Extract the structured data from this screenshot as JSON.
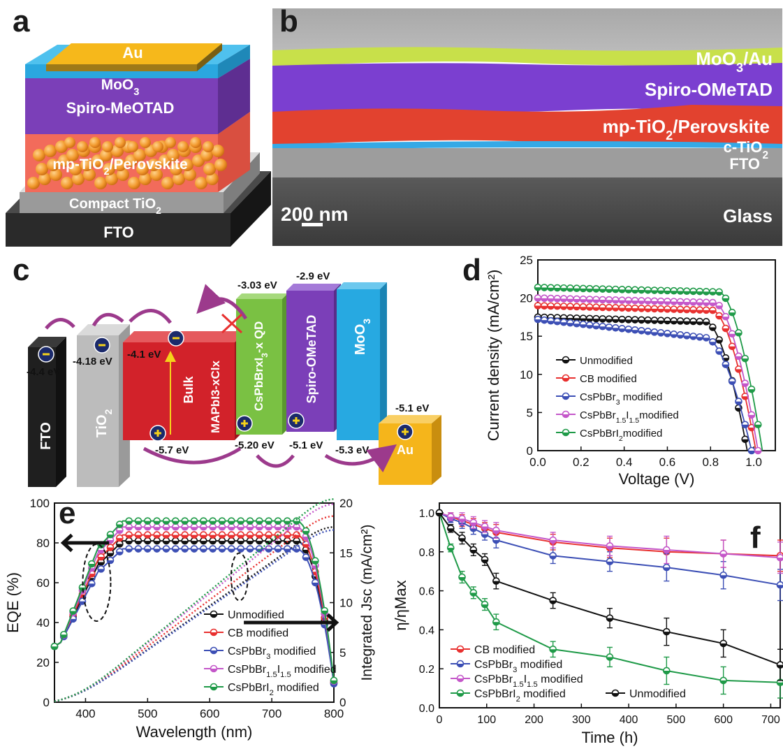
{
  "panels": {
    "a": "a",
    "b": "b",
    "c": "c",
    "d": "d",
    "e": "e",
    "f": "f"
  },
  "panel_a": {
    "layers": [
      "Au",
      "MoO3",
      "Spiro-MeOTAD",
      "mp-TiO2/Perovskite",
      "Compact TiO2",
      "FTO"
    ]
  },
  "panel_b": {
    "labels": [
      "MoO3/Au",
      "Spiro-OMeTAD",
      "mp-TiO2/Perovskite",
      "c-TiO2",
      "FTO",
      "Glass"
    ],
    "scalebar": "200 nm",
    "colors": {
      "moo3_au": "#c8e04a",
      "spiro": "#7b3fd0",
      "perovskite": "#e2422f",
      "ctio2": "#35a9e6"
    }
  },
  "panel_c": {
    "blocks": [
      {
        "name": "FTO",
        "top": "-4.4 eV",
        "color": "#1f1f1f"
      },
      {
        "name": "TiO2",
        "top": "-4.18 eV",
        "color": "#c2c2c2"
      },
      {
        "name": "Bulk MAPbI3-xClx",
        "top": "-4.1 eV",
        "bottom": "-5.7 eV",
        "color": "#d2222a"
      },
      {
        "name": "CsPbBrxI3-x QD",
        "top": "-3.03 eV",
        "bottom": "-5.20 eV",
        "color": "#7ac143"
      },
      {
        "name": "Spiro-OMeTAD",
        "top": "-2.9 eV",
        "bottom": "-5.1 eV",
        "color": "#7b3fb8"
      },
      {
        "name": "MoO3",
        "bottom": "-5.3 eV",
        "color": "#27a9e1"
      },
      {
        "name": "Au",
        "top": "-5.1 eV",
        "color": "#f5b51b"
      }
    ]
  },
  "chart_data": [
    {
      "panel": "d",
      "type": "line",
      "xlabel": "Voltage (V)",
      "ylabel": "Current density (mA/cm²)",
      "xlim": [
        0.0,
        1.1
      ],
      "ylim": [
        0,
        25
      ],
      "xticks": [
        "0.0",
        "0.2",
        "0.4",
        "0.6",
        "0.8",
        "1.0"
      ],
      "yticks": [
        "0",
        "5",
        "10",
        "15",
        "20",
        "25"
      ],
      "legend": "lower-left",
      "series": [
        {
          "name": "Unmodified",
          "color": "#111111",
          "jsc": 17.5,
          "voc": 0.97,
          "knee": 0.78
        },
        {
          "name": "CB modified",
          "color": "#e8302f",
          "jsc": 19.0,
          "voc": 1.01,
          "knee": 0.81
        },
        {
          "name": "CsPbBr3 modified",
          "color": "#3c4fb5",
          "jsc": 17.2,
          "voc": 0.99,
          "knee": 0.78
        },
        {
          "name": "CsPbBr1.5I1.5modified",
          "color": "#c457c9",
          "jsc": 20.0,
          "voc": 1.02,
          "knee": 0.82
        },
        {
          "name": "CsPbBrI2modified",
          "color": "#1f9a48",
          "jsc": 21.4,
          "voc": 1.04,
          "knee": 0.84
        }
      ]
    },
    {
      "panel": "e",
      "type": "line",
      "xlabel": "Wavelength (nm)",
      "ylabel": "EQE (%)",
      "y2label": "Integrated Jsc (mA/cm²)",
      "xlim": [
        350,
        800
      ],
      "ylim": [
        0,
        100
      ],
      "y2lim": [
        0,
        20
      ],
      "xticks": [
        "400",
        "500",
        "600",
        "700",
        "800"
      ],
      "yticks": [
        "0",
        "20",
        "40",
        "60",
        "80",
        "100"
      ],
      "y2ticks": [
        "0",
        "5",
        "10",
        "15",
        "20"
      ],
      "legend": "lower-center",
      "series": [
        {
          "name": "Unmodified",
          "color": "#111111",
          "plateau": 81,
          "jsc_end": 17.6
        },
        {
          "name": "CB modified",
          "color": "#e8302f",
          "plateau": 84,
          "jsc_end": 18.7
        },
        {
          "name": "CsPbBr3 modified",
          "color": "#3c4fb5",
          "plateau": 77,
          "jsc_end": 17.3
        },
        {
          "name": "CsPbBr1.5I1.5 modified",
          "color": "#c457c9",
          "plateau": 88,
          "jsc_end": 19.9
        },
        {
          "name": "CsPbBrI2 modified",
          "color": "#1f9a48",
          "plateau": 91,
          "jsc_end": 20.4
        }
      ]
    },
    {
      "panel": "f",
      "type": "line",
      "xlabel": "Time (h)",
      "ylabel": "η/ηMax",
      "xlim": [
        0,
        720
      ],
      "ylim": [
        0.0,
        1.05
      ],
      "xticks": [
        "0",
        "100",
        "200",
        "300",
        "400",
        "500",
        "600",
        "700"
      ],
      "yticks": [
        "0.0",
        "0.2",
        "0.4",
        "0.6",
        "0.8",
        "1.0"
      ],
      "legend": "lower-left",
      "x": [
        0,
        24,
        48,
        72,
        96,
        120,
        240,
        360,
        480,
        600,
        720
      ],
      "series": [
        {
          "name": "CB modified",
          "color": "#e8302f",
          "values": [
            1.0,
            0.98,
            0.96,
            0.94,
            0.92,
            0.9,
            0.85,
            0.82,
            0.8,
            0.79,
            0.78
          ]
        },
        {
          "name": "CsPbBr3 modified",
          "color": "#3c4fb5",
          "values": [
            1.0,
            0.97,
            0.95,
            0.92,
            0.89,
            0.86,
            0.78,
            0.75,
            0.72,
            0.68,
            0.63
          ]
        },
        {
          "name": "CsPbBr1.5I1.5 modified",
          "color": "#c457c9",
          "values": [
            1.0,
            0.98,
            0.97,
            0.95,
            0.93,
            0.91,
            0.86,
            0.83,
            0.81,
            0.79,
            0.77
          ]
        },
        {
          "name": "CsPbBrI2 modified",
          "color": "#1f9a48",
          "values": [
            1.0,
            0.82,
            0.67,
            0.59,
            0.53,
            0.44,
            0.3,
            0.26,
            0.19,
            0.14,
            0.13
          ]
        },
        {
          "name": "Unmodified",
          "color": "#111111",
          "values": [
            1.0,
            0.92,
            0.87,
            0.81,
            0.76,
            0.65,
            0.55,
            0.46,
            0.39,
            0.33,
            0.22
          ]
        }
      ]
    }
  ]
}
